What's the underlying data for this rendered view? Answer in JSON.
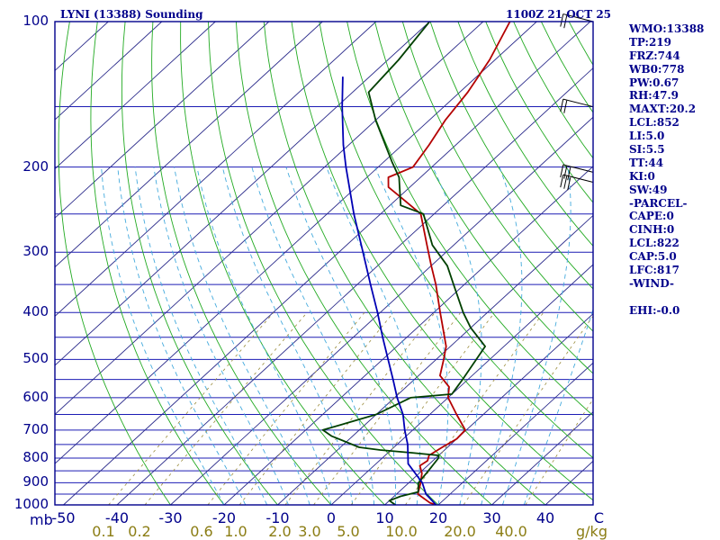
{
  "title_left": "LYNI (13388) Sounding",
  "title_right": "1100Z 21 OCT 25",
  "indices": [
    "WMO:13388",
    "TP:219",
    "FRZ:744",
    "WB0:778",
    "PW:0.67",
    "RH:47.9",
    "MAXT:20.2",
    "LCL:852",
    "LI:5.0",
    "SI:5.5",
    "TT:44",
    "KI:0",
    "SW:49",
    "-PARCEL-",
    "CAPE:0",
    "CINH:0",
    "LCL:822",
    "CAP:5.0",
    "LFC:817",
    "-WIND-",
    "",
    "EHI:-0.0"
  ],
  "colors": {
    "frame": "#00008b",
    "isobar": "#1c1cb4",
    "isotherm": "#2a2a8a",
    "dry_adiabat": "#22aa22",
    "moist_adiabat": "#44aadd",
    "mixing_ratio": "#9a8c3c",
    "temperature": "#b40000",
    "dewpoint": "#004000",
    "parcel": "#0000b4"
  },
  "chart_data": {
    "type": "line",
    "title": "LYNI (13388) Sounding",
    "xlabel": "",
    "ylabel": "mb",
    "x_unit": "C",
    "y_scale": "log",
    "ylim": [
      1000,
      100
    ],
    "xlim": [
      -50,
      50
    ],
    "pressure_ticks": [
      {
        "value": 100,
        "label": "100"
      },
      {
        "value": 200,
        "label": "200"
      },
      {
        "value": 300,
        "label": "300"
      },
      {
        "value": 400,
        "label": "400"
      },
      {
        "value": 500,
        "label": "500"
      },
      {
        "value": 600,
        "label": "600"
      },
      {
        "value": 700,
        "label": "700"
      },
      {
        "value": 800,
        "label": "800"
      },
      {
        "value": 900,
        "label": "900"
      },
      {
        "value": 1000,
        "label": "1000"
      }
    ],
    "temperature_ticks": [
      {
        "value": -50,
        "label": "-50"
      },
      {
        "value": -40,
        "label": "-40"
      },
      {
        "value": -30,
        "label": "-30"
      },
      {
        "value": -20,
        "label": "-20"
      },
      {
        "value": -10,
        "label": "-10"
      },
      {
        "value": 0,
        "label": "0"
      },
      {
        "value": 10,
        "label": "10"
      },
      {
        "value": 20,
        "label": "20"
      },
      {
        "value": 30,
        "label": "30"
      },
      {
        "value": 40,
        "label": "40"
      },
      {
        "value": 50,
        "label": "C"
      }
    ],
    "mixing_ratio_labels": [
      "0.1",
      "0.2",
      "0.6",
      "1.0",
      "2.0",
      "3.0",
      "5.0",
      "10.0",
      "20.0",
      "40.0"
    ],
    "mixing_ratio_unit": "g/kg",
    "mixing_ratio_values": [
      0.1,
      0.2,
      0.6,
      1.0,
      2.0,
      3.0,
      5.0,
      10.0,
      20.0,
      40.0
    ],
    "series": [
      {
        "key": "temperature",
        "points": [
          [
            1000,
            19.6
          ],
          [
            990,
            18.0
          ],
          [
            950,
            14.0
          ],
          [
            900,
            12.2
          ],
          [
            860,
            10.5
          ],
          [
            830,
            8.6
          ],
          [
            810,
            9.0
          ],
          [
            790,
            8.2
          ],
          [
            760,
            9.0
          ],
          [
            730,
            10.0
          ],
          [
            700,
            9.8
          ],
          [
            650,
            5.0
          ],
          [
            600,
            0.0
          ],
          [
            570,
            -2.0
          ],
          [
            540,
            -6.0
          ],
          [
            500,
            -8.6
          ],
          [
            470,
            -10.8
          ],
          [
            430,
            -15.2
          ],
          [
            400,
            -18.8
          ],
          [
            350,
            -25.3
          ],
          [
            320,
            -30.0
          ],
          [
            290,
            -35.0
          ],
          [
            250,
            -42.5
          ],
          [
            230,
            -50.0
          ],
          [
            220,
            -54.0
          ],
          [
            210,
            -56.0
          ],
          [
            200,
            -53.5
          ],
          [
            180,
            -55.0
          ],
          [
            160,
            -57.0
          ],
          [
            140,
            -58.5
          ],
          [
            120,
            -61.0
          ],
          [
            100,
            -65.0
          ]
        ]
      },
      {
        "key": "dewpoint",
        "points": [
          [
            1000,
            12.0
          ],
          [
            980,
            10.0
          ],
          [
            960,
            11.2
          ],
          [
            940,
            13.6
          ],
          [
            900,
            11.8
          ],
          [
            850,
            11.2
          ],
          [
            800,
            10.5
          ],
          [
            790,
            10.0
          ],
          [
            780,
            4.5
          ],
          [
            770,
            -2.0
          ],
          [
            760,
            -6.5
          ],
          [
            720,
            -14.0
          ],
          [
            700,
            -16.8
          ],
          [
            650,
            -10.0
          ],
          [
            600,
            -7.0
          ],
          [
            590,
            0.0
          ],
          [
            550,
            -1.0
          ],
          [
            500,
            -2.5
          ],
          [
            470,
            -3.5
          ],
          [
            430,
            -10.0
          ],
          [
            400,
            -14.5
          ],
          [
            350,
            -22.0
          ],
          [
            320,
            -27.0
          ],
          [
            290,
            -34.0
          ],
          [
            250,
            -42.0
          ],
          [
            240,
            -48.0
          ],
          [
            210,
            -54.0
          ],
          [
            195,
            -58.5
          ],
          [
            160,
            -70.0
          ],
          [
            140,
            -77.0
          ],
          [
            120,
            -78.0
          ],
          [
            100,
            -80.0
          ]
        ]
      },
      {
        "key": "parcel",
        "points": [
          [
            1000,
            19.6
          ],
          [
            950,
            15.5
          ],
          [
            900,
            12.5
          ],
          [
            822,
            6.0
          ],
          [
            750,
            2.0
          ],
          [
            700,
            -1.5
          ],
          [
            650,
            -5.0
          ],
          [
            600,
            -9.5
          ],
          [
            550,
            -14.0
          ],
          [
            500,
            -19.0
          ],
          [
            450,
            -24.5
          ],
          [
            400,
            -30.5
          ],
          [
            350,
            -37.5
          ],
          [
            300,
            -45.5
          ],
          [
            250,
            -55.0
          ],
          [
            200,
            -66.0
          ],
          [
            180,
            -71.0
          ],
          [
            150,
            -79.0
          ],
          [
            130,
            -85.0
          ]
        ]
      }
    ],
    "wind_barbs": [
      {
        "p": 150,
        "spd": 20
      },
      {
        "p": 205,
        "spd": 30
      },
      {
        "p": 215,
        "spd": 30
      },
      {
        "p": 100,
        "spd": 15
      }
    ]
  }
}
